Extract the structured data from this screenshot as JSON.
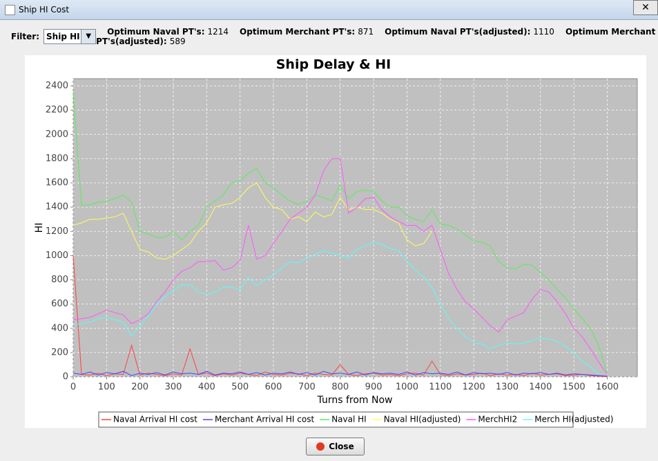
{
  "window": {
    "title": "Ship HI Cost",
    "close_button": "Close"
  },
  "filter": {
    "label": "Filter:",
    "value": "Ship HI"
  },
  "stats": [
    {
      "label": "Optimum Naval PT's:",
      "value": 1214
    },
    {
      "label": "Optimum Merchant PT's:",
      "value": 871
    },
    {
      "label": "Optimum Naval PT's(adjusted):",
      "value": 1110
    },
    {
      "label": "Optimum Merchant PT's(adjusted):",
      "value": 589
    }
  ],
  "chart_data": {
    "type": "line",
    "title": "Ship Delay & HI",
    "x_label": "Turns from Now",
    "y_label": "HI",
    "xlim": [
      0,
      1690
    ],
    "ylim": [
      0,
      2460
    ],
    "xticks": [
      0,
      100,
      200,
      300,
      400,
      500,
      600,
      700,
      800,
      900,
      1000,
      1100,
      1200,
      1300,
      1400,
      1500,
      1600
    ],
    "yticks": [
      0,
      200,
      400,
      600,
      800,
      1000,
      1200,
      1400,
      1600,
      1800,
      2000,
      2200,
      2400
    ],
    "grid": true,
    "x": [
      0,
      25,
      50,
      75,
      100,
      125,
      150,
      175,
      200,
      225,
      250,
      275,
      300,
      325,
      350,
      375,
      400,
      425,
      450,
      475,
      500,
      525,
      550,
      575,
      600,
      625,
      650,
      675,
      700,
      725,
      750,
      775,
      800,
      825,
      850,
      875,
      900,
      925,
      950,
      975,
      1000,
      1025,
      1050,
      1075,
      1100,
      1125,
      1150,
      1175,
      1200,
      1225,
      1250,
      1275,
      1300,
      1325,
      1350,
      1375,
      1400,
      1425,
      1450,
      1475,
      1500,
      1525,
      1550,
      1575,
      1600
    ],
    "series": [
      {
        "name": "Naval Arrival HI cost",
        "color": "#ff4040",
        "values": [
          1000,
          20,
          15,
          30,
          10,
          25,
          20,
          260,
          15,
          30,
          20,
          10,
          25,
          15,
          230,
          20,
          30,
          10,
          25,
          15,
          30,
          20,
          10,
          40,
          20,
          15,
          30,
          25,
          10,
          30,
          20,
          15,
          100,
          20,
          10,
          25,
          30,
          15,
          20,
          10,
          25,
          30,
          15,
          130,
          20,
          10,
          25,
          15,
          20,
          30,
          10,
          25,
          15,
          20,
          10,
          30,
          15,
          20,
          25,
          10,
          15,
          20,
          10,
          5,
          0
        ]
      },
      {
        "name": "Merchant Arrival HI cost",
        "color": "#4444ff",
        "values": [
          30,
          20,
          40,
          15,
          35,
          25,
          45,
          10,
          30,
          20,
          35,
          15,
          40,
          25,
          30,
          20,
          45,
          15,
          30,
          25,
          40,
          20,
          35,
          15,
          30,
          25,
          40,
          20,
          35,
          15,
          45,
          25,
          30,
          20,
          40,
          15,
          35,
          25,
          30,
          20,
          40,
          15,
          35,
          25,
          30,
          20,
          40,
          15,
          35,
          25,
          30,
          20,
          35,
          15,
          30,
          25,
          35,
          20,
          30,
          15,
          25,
          20,
          15,
          10,
          5
        ]
      },
      {
        "name": "Naval HI",
        "color": "#55ee55",
        "values": [
          2350,
          1410,
          1420,
          1440,
          1450,
          1470,
          1500,
          1440,
          1200,
          1180,
          1150,
          1150,
          1200,
          1130,
          1200,
          1250,
          1400,
          1450,
          1500,
          1600,
          1620,
          1680,
          1720,
          1600,
          1560,
          1500,
          1450,
          1420,
          1450,
          1500,
          1480,
          1450,
          1580,
          1470,
          1530,
          1540,
          1530,
          1450,
          1400,
          1400,
          1330,
          1300,
          1280,
          1380,
          1260,
          1250,
          1220,
          1170,
          1120,
          1110,
          1080,
          950,
          900,
          890,
          930,
          920,
          860,
          800,
          720,
          650,
          560,
          480,
          400,
          250,
          30
        ]
      },
      {
        "name": "Naval HI(adjusted)",
        "color": "#ffff55",
        "values": [
          1250,
          1270,
          1300,
          1300,
          1310,
          1320,
          1350,
          1200,
          1050,
          1030,
          980,
          970,
          1000,
          1050,
          1100,
          1200,
          1270,
          1400,
          1420,
          1430,
          1480,
          1560,
          1600,
          1480,
          1400,
          1380,
          1300,
          1320,
          1280,
          1360,
          1320,
          1340,
          1480,
          1380,
          1400,
          1380,
          1380,
          1350,
          1300,
          1270,
          1130,
          1080,
          1100,
          1200,
          null,
          null,
          null,
          null,
          null,
          null,
          null,
          null,
          null,
          null,
          null,
          null,
          null,
          null,
          null,
          null,
          null,
          null,
          null,
          null,
          null
        ]
      },
      {
        "name": "MerchHI2",
        "color": "#ff55ff",
        "values": [
          470,
          480,
          490,
          520,
          550,
          530,
          510,
          440,
          470,
          520,
          620,
          700,
          800,
          870,
          900,
          950,
          950,
          960,
          880,
          900,
          960,
          1250,
          970,
          1000,
          1100,
          1200,
          1300,
          1350,
          1400,
          1500,
          1700,
          1800,
          1800,
          1350,
          1400,
          1470,
          1480,
          1380,
          1320,
          1280,
          1250,
          1250,
          1200,
          1250,
          1050,
          850,
          720,
          620,
          560,
          490,
          420,
          370,
          470,
          500,
          530,
          640,
          720,
          700,
          620,
          520,
          400,
          330,
          230,
          120,
          20
        ]
      },
      {
        "name": "Merch HI(adjusted)",
        "color": "#55ffff",
        "values": [
          430,
          440,
          450,
          480,
          490,
          470,
          450,
          340,
          420,
          500,
          600,
          660,
          710,
          760,
          760,
          700,
          680,
          700,
          740,
          740,
          720,
          820,
          750,
          800,
          840,
          900,
          950,
          940,
          980,
          1010,
          1040,
          1020,
          1000,
          980,
          1050,
          1080,
          1110,
          1090,
          1060,
          1040,
          950,
          880,
          820,
          740,
          600,
          480,
          400,
          330,
          280,
          270,
          230,
          260,
          280,
          270,
          280,
          300,
          320,
          310,
          290,
          250,
          200,
          130,
          80,
          20,
          null
        ]
      }
    ]
  }
}
